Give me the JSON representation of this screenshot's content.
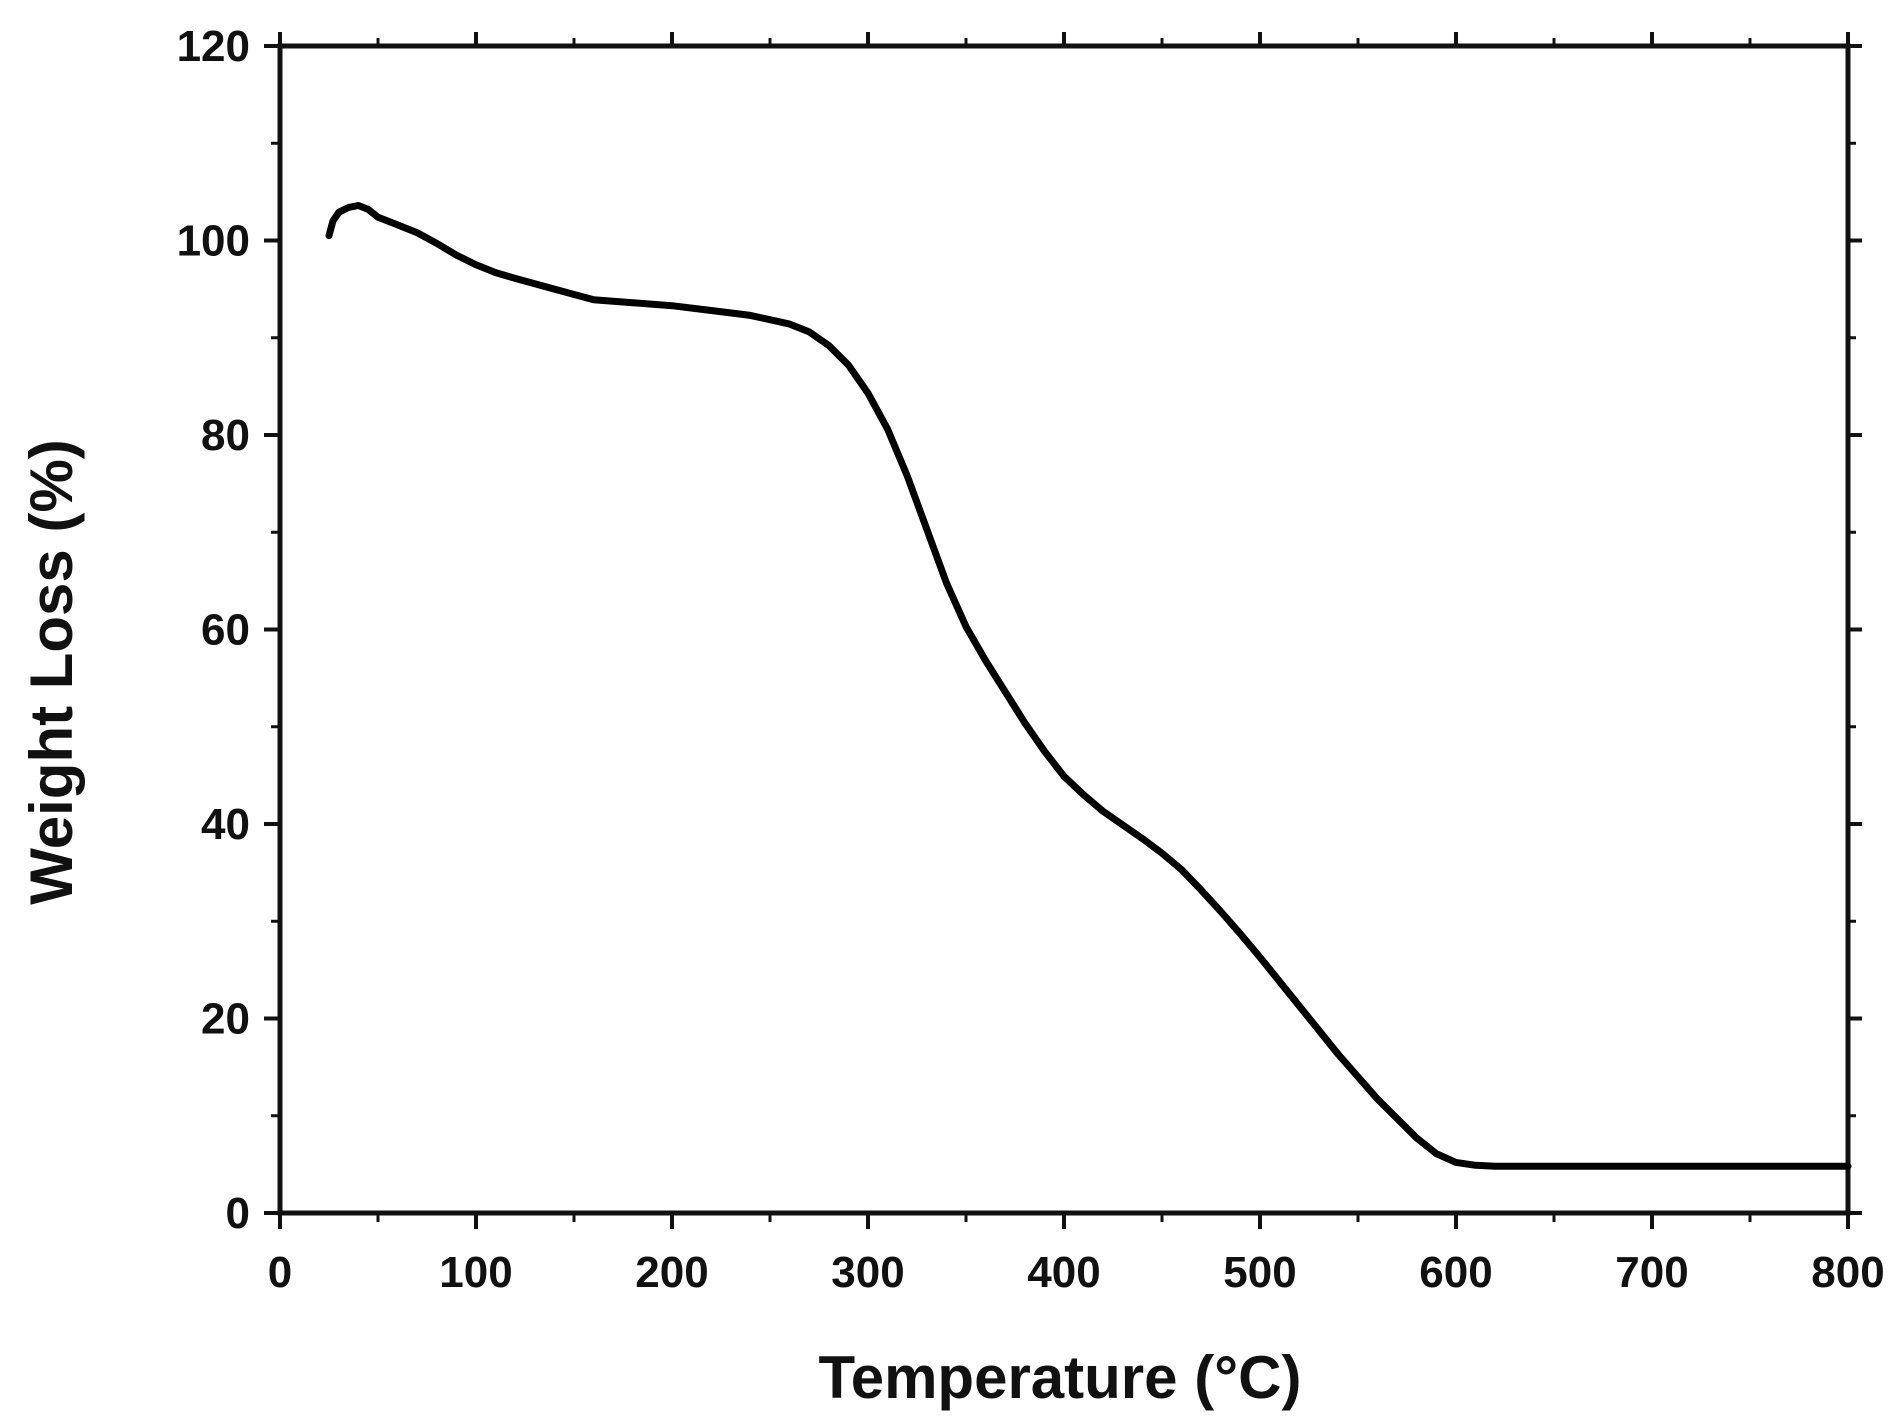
{
  "chart_data": {
    "type": "line",
    "title": "",
    "xlabel": "Temperature (°C)",
    "ylabel": "Weight Loss (%)",
    "xlim": [
      0,
      800
    ],
    "ylim": [
      0,
      120
    ],
    "x_ticks": [
      0,
      100,
      200,
      300,
      400,
      500,
      600,
      700,
      800
    ],
    "y_ticks": [
      0,
      20,
      40,
      60,
      80,
      100,
      120
    ],
    "x_tick_labels": [
      "0",
      "100",
      "200",
      "300",
      "400",
      "500",
      "600",
      "700",
      "800"
    ],
    "y_tick_labels": [
      "0",
      "20",
      "40",
      "60",
      "80",
      "100",
      "120"
    ],
    "grid": false,
    "legend": "none",
    "line_color": "#000000",
    "series": [
      {
        "x": [
          25,
          27,
          30,
          35,
          40,
          45,
          50,
          60,
          70,
          80,
          90,
          100,
          110,
          120,
          140,
          160,
          180,
          200,
          220,
          240,
          260,
          270,
          280,
          290,
          300,
          310,
          320,
          330,
          340,
          350,
          360,
          370,
          380,
          390,
          400,
          410,
          420,
          430,
          440,
          450,
          460,
          470,
          480,
          490,
          500,
          520,
          540,
          560,
          580,
          590,
          600,
          610,
          620,
          630,
          650,
          700,
          750,
          800
        ],
        "y": [
          100.5,
          102,
          102.9,
          103.4,
          103.6,
          103.2,
          102.4,
          101.6,
          100.8,
          99.7,
          98.5,
          97.5,
          96.7,
          96.1,
          95.0,
          93.9,
          93.6,
          93.3,
          92.8,
          92.3,
          91.4,
          90.6,
          89.2,
          87.2,
          84.3,
          80.6,
          75.8,
          70.3,
          64.8,
          60.3,
          56.8,
          53.6,
          50.4,
          47.5,
          44.9,
          43.0,
          41.3,
          39.9,
          38.5,
          37.0,
          35.3,
          33.2,
          31.0,
          28.7,
          26.3,
          21.3,
          16.3,
          11.7,
          7.7,
          6.1,
          5.2,
          4.9,
          4.8,
          4.8,
          4.8,
          4.8,
          4.8,
          4.8
        ]
      }
    ]
  }
}
